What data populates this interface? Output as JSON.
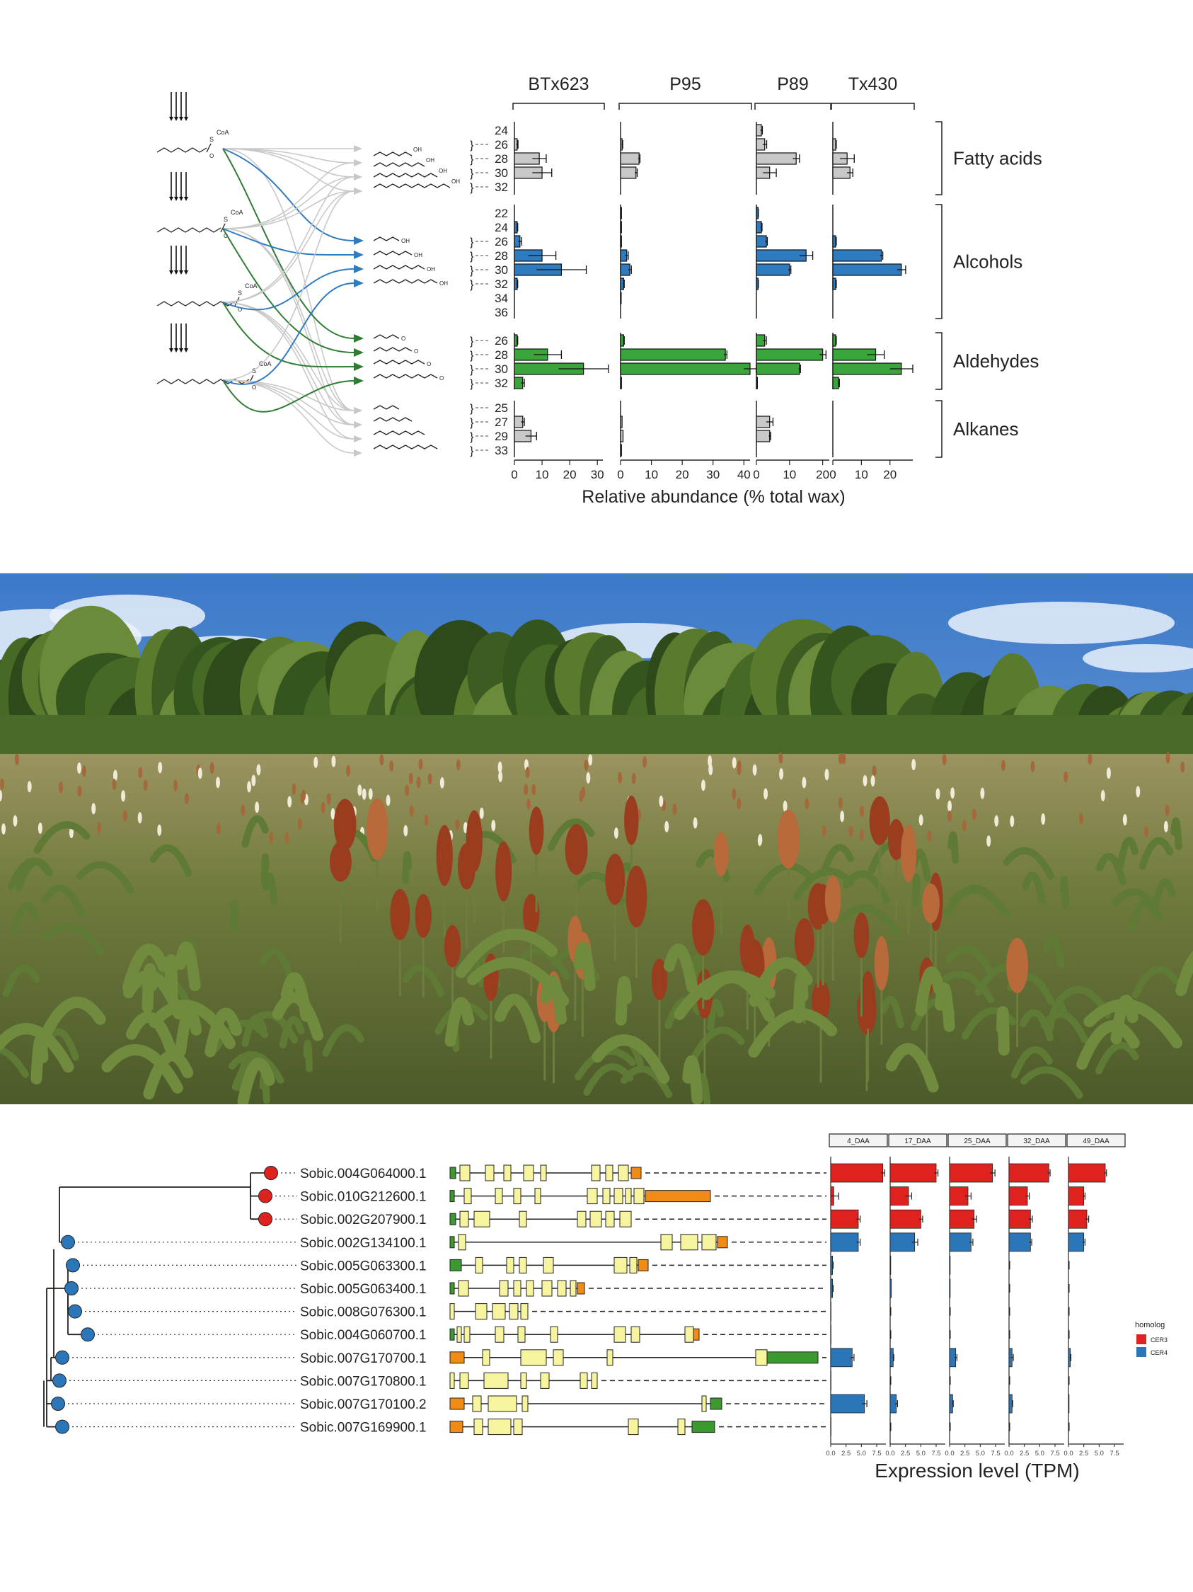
{
  "panel_a": {
    "genotypes": [
      "BTx623",
      "P95",
      "P89",
      "Tx430"
    ],
    "xlabel": "Relative abundance (% total wax)",
    "x_ticks": [
      [
        0,
        10,
        20,
        30
      ],
      [
        0,
        10,
        20,
        30,
        40
      ],
      [
        0,
        10,
        20
      ],
      [
        0,
        10,
        20
      ]
    ],
    "group_names": [
      "Fatty acids",
      "Alcohols",
      "Aldehydes",
      "Alkanes"
    ],
    "chain_labels": [
      [
        "24",
        "26",
        "28",
        "30",
        "32"
      ],
      [
        "22",
        "24",
        "26",
        "28",
        "30",
        "32",
        "34",
        "36"
      ],
      [
        "26",
        "28",
        "30",
        "32"
      ],
      [
        "25",
        "27",
        "29",
        "33"
      ]
    ],
    "molecule_labels": {
      "coa": "CoA",
      "s": "S",
      "hydroxyl": "OH"
    },
    "colors": {
      "fatty_acids": "#c8c8c8",
      "alcohols": "#2f7bbf",
      "aldehydes": "#3aa53a",
      "alkanes": "#c8c8c8",
      "arrow_gray": "#c8c8c8",
      "arrow_blue": "#2f7bbf",
      "arrow_green": "#2e7d32"
    }
  },
  "chart_data": [
    {
      "type": "bar",
      "title": "",
      "xlabel": "Relative abundance (% total wax)",
      "ylabel": "",
      "orientation": "horizontal",
      "panels": [
        "BTx623",
        "P95",
        "P89",
        "Tx430"
      ],
      "xlim": [
        [
          0,
          32
        ],
        [
          0,
          42
        ],
        [
          0,
          22
        ],
        [
          0,
          28
        ]
      ],
      "groups": [
        {
          "name": "Fatty acids",
          "chain_lengths": [
            24,
            26,
            28,
            30,
            32
          ],
          "series": [
            {
              "name": "BTx623",
              "values": [
                0,
                1,
                9,
                10,
                0
              ],
              "errors": [
                0,
                0.3,
                2.5,
                3.5,
                0
              ]
            },
            {
              "name": "P95",
              "values": [
                0,
                0.5,
                6,
                5,
                0
              ],
              "errors": [
                0,
                0.2,
                0.3,
                0.4,
                0
              ]
            },
            {
              "name": "P89",
              "values": [
                1.5,
                2.5,
                12,
                4,
                0
              ],
              "errors": [
                0.3,
                0.6,
                1,
                2,
                0
              ]
            },
            {
              "name": "Tx430",
              "values": [
                0,
                1,
                5,
                6,
                0
              ],
              "errors": [
                0,
                0.2,
                2.5,
                1,
                0
              ]
            }
          ]
        },
        {
          "name": "Alcohols",
          "chain_lengths": [
            22,
            24,
            26,
            28,
            30,
            32,
            34,
            36
          ],
          "series": [
            {
              "name": "BTx623",
              "values": [
                0,
                1,
                2,
                10,
                17,
                1,
                0,
                0
              ],
              "errors": [
                0,
                0.2,
                0.6,
                5,
                9,
                0.2,
                0,
                0
              ]
            },
            {
              "name": "P95",
              "values": [
                0.3,
                0.3,
                0.3,
                2,
                3,
                1,
                0.2,
                0
              ],
              "errors": [
                0,
                0,
                0,
                0.5,
                0.5,
                0.2,
                0,
                0
              ]
            },
            {
              "name": "P89",
              "values": [
                0.5,
                1.5,
                3,
                15,
                10,
                0.5,
                0,
                0
              ],
              "errors": [
                0.1,
                0.2,
                0.3,
                2,
                0.4,
                0.1,
                0,
                0
              ]
            },
            {
              "name": "Tx430",
              "values": [
                0,
                0,
                1,
                17,
                24,
                1,
                0,
                0
              ],
              "errors": [
                0,
                0,
                0.2,
                0.5,
                1.5,
                0.2,
                0,
                0
              ]
            }
          ]
        },
        {
          "name": "Aldehydes",
          "chain_lengths": [
            26,
            28,
            30,
            32
          ],
          "series": [
            {
              "name": "BTx623",
              "values": [
                1,
                12,
                25,
                3
              ],
              "errors": [
                0.2,
                5,
                9,
                0.6
              ]
            },
            {
              "name": "P95",
              "values": [
                1,
                34,
                42,
                0.3
              ],
              "errors": [
                0.2,
                0.5,
                2,
                0
              ]
            },
            {
              "name": "P89",
              "values": [
                2.5,
                20,
                13,
                0.3
              ],
              "errors": [
                0.5,
                1,
                0.3,
                0
              ]
            },
            {
              "name": "Tx430",
              "values": [
                1,
                15,
                24,
                2
              ],
              "errors": [
                0.2,
                3,
                4,
                0.3
              ]
            }
          ]
        },
        {
          "name": "Alkanes",
          "chain_lengths": [
            25,
            27,
            29,
            33
          ],
          "series": [
            {
              "name": "BTx623",
              "values": [
                0,
                3,
                6,
                0
              ],
              "errors": [
                0,
                0.6,
                2,
                0
              ]
            },
            {
              "name": "P95",
              "values": [
                0,
                0.5,
                0.8,
                0.3
              ],
              "errors": [
                0,
                0,
                0,
                0
              ]
            },
            {
              "name": "P89",
              "values": [
                0,
                4,
                4,
                0
              ],
              "errors": [
                0,
                1,
                0.3,
                0
              ]
            },
            {
              "name": "Tx430",
              "values": [
                0,
                0,
                0,
                0
              ],
              "errors": [
                0,
                0,
                0,
                0
              ]
            }
          ]
        }
      ]
    },
    {
      "type": "bar",
      "title": "",
      "xlabel": "Expression level (TPM)",
      "ylabel": "",
      "orientation": "horizontal",
      "panels": [
        "4_DAA",
        "17_DAA",
        "25_DAA",
        "32_DAA",
        "49_DAA"
      ],
      "x_ticks": [
        "0.0",
        "2.5",
        "5.0",
        "7.5"
      ],
      "xlim": [
        0,
        9
      ],
      "legend": {
        "title": "homolog",
        "entries": [
          "CER3",
          "CER4"
        ],
        "placement": "right"
      },
      "genes": [
        "Sobic.004G064000.1",
        "Sobic.010G212600.1",
        "Sobic.002G207900.1",
        "Sobic.002G134100.1",
        "Sobic.005G063300.1",
        "Sobic.005G063400.1",
        "Sobic.008G076300.1",
        "Sobic.004G060700.1",
        "Sobic.007G170700.1",
        "Sobic.007G170800.1",
        "Sobic.007G170100.2",
        "Sobic.007G169900.1"
      ],
      "homolog": [
        "CER3",
        "CER3",
        "CER3",
        "CER4",
        "CER4",
        "CER4",
        "CER4",
        "CER4",
        "CER4",
        "CER4",
        "CER4",
        "CER4"
      ],
      "series": [
        {
          "name": "4_DAA",
          "values": [
            8.5,
            0.5,
            4.5,
            4.5,
            0.3,
            0.3,
            0.05,
            0.05,
            3.5,
            0.05,
            5.5,
            0.05
          ],
          "errors": [
            0.3,
            0.8,
            0.3,
            0.3,
            0.1,
            0.1,
            0,
            0,
            0.3,
            0,
            0.4,
            0
          ]
        },
        {
          "name": "17_DAA",
          "values": [
            7.5,
            3,
            5,
            4,
            0.1,
            0.2,
            0,
            0,
            0.5,
            0,
            1,
            0
          ],
          "errors": [
            0.3,
            0.5,
            0.3,
            0.5,
            0,
            0,
            0,
            0,
            0.1,
            0,
            0.2,
            0
          ]
        },
        {
          "name": "25_DAA",
          "values": [
            7,
            3,
            4,
            3.5,
            0.1,
            0.1,
            0,
            0,
            1,
            0,
            0.5,
            0
          ],
          "errors": [
            0.4,
            0.5,
            0.4,
            0.3,
            0,
            0,
            0,
            0,
            0.2,
            0,
            0.1,
            0
          ]
        },
        {
          "name": "32_DAA",
          "values": [
            6.5,
            3,
            3.5,
            3.5,
            0,
            0,
            0,
            0,
            0.5,
            0,
            0.5,
            0
          ],
          "errors": [
            0.2,
            0.3,
            0.3,
            0.2,
            0,
            0,
            0,
            0,
            0.2,
            0,
            0.1,
            0
          ]
        },
        {
          "name": "49_DAA",
          "values": [
            6,
            2.5,
            3,
            2.5,
            0,
            0,
            0,
            0,
            0.3,
            0,
            0.1,
            0
          ],
          "errors": [
            0.2,
            0.2,
            0.3,
            0.2,
            0,
            0,
            0,
            0,
            0.1,
            0,
            0,
            0
          ]
        }
      ]
    }
  ],
  "panel_c": {
    "xlabel": "Expression level (TPM)",
    "legend_title": "homolog",
    "legend_entries": [
      "CER3",
      "CER4"
    ],
    "colors": {
      "CER3": "#e0221e",
      "CER4": "#2b76b9",
      "exon": "#f7f4a0",
      "utr5": "#3a9a2f",
      "utr3": "#f28a16",
      "utr_green": "#3a9a2f"
    }
  }
}
